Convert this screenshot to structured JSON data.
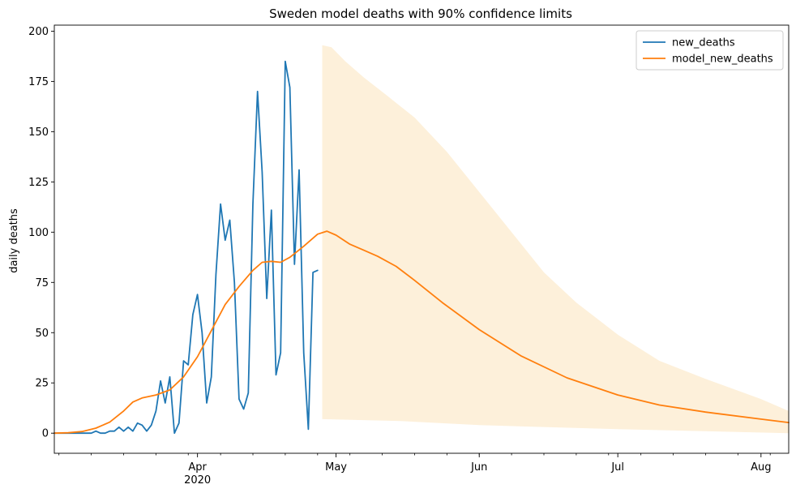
{
  "chart_data": {
    "type": "line",
    "title": "Sweden model deaths with 90% confidence limits",
    "xlabel": "",
    "ylabel": "daily deaths",
    "ylim": [
      -10,
      203
    ],
    "xlim": [
      "2020-03-01",
      "2020-08-07"
    ],
    "yticks": [
      0,
      25,
      50,
      75,
      100,
      125,
      150,
      175,
      200
    ],
    "xticks": [
      {
        "date": "2020-04-01",
        "label": "Apr",
        "sublabel": "2020"
      },
      {
        "date": "2020-05-01",
        "label": "May",
        "sublabel": ""
      },
      {
        "date": "2020-06-01",
        "label": "Jun",
        "sublabel": ""
      },
      {
        "date": "2020-07-01",
        "label": "Jul",
        "sublabel": ""
      },
      {
        "date": "2020-08-01",
        "label": "Aug",
        "sublabel": ""
      }
    ],
    "legend_position": "top-right",
    "grid": false,
    "colors": {
      "new_deaths": "#1f77b4",
      "model_new_deaths": "#ff7f0e",
      "confidence_band": "#fdf0da"
    },
    "series": [
      {
        "name": "new_deaths",
        "points": [
          [
            "2020-03-01",
            0
          ],
          [
            "2020-03-02",
            0
          ],
          [
            "2020-03-03",
            0
          ],
          [
            "2020-03-04",
            0
          ],
          [
            "2020-03-05",
            0
          ],
          [
            "2020-03-06",
            0
          ],
          [
            "2020-03-07",
            0
          ],
          [
            "2020-03-08",
            0
          ],
          [
            "2020-03-09",
            0
          ],
          [
            "2020-03-10",
            1
          ],
          [
            "2020-03-11",
            0
          ],
          [
            "2020-03-12",
            0
          ],
          [
            "2020-03-13",
            1
          ],
          [
            "2020-03-14",
            1
          ],
          [
            "2020-03-15",
            3
          ],
          [
            "2020-03-16",
            1
          ],
          [
            "2020-03-17",
            3
          ],
          [
            "2020-03-18",
            1
          ],
          [
            "2020-03-19",
            5
          ],
          [
            "2020-03-20",
            4
          ],
          [
            "2020-03-21",
            1
          ],
          [
            "2020-03-22",
            4
          ],
          [
            "2020-03-23",
            11
          ],
          [
            "2020-03-24",
            26
          ],
          [
            "2020-03-25",
            15
          ],
          [
            "2020-03-26",
            28
          ],
          [
            "2020-03-27",
            0
          ],
          [
            "2020-03-28",
            5
          ],
          [
            "2020-03-29",
            36
          ],
          [
            "2020-03-30",
            34
          ],
          [
            "2020-03-31",
            59
          ],
          [
            "2020-04-01",
            69
          ],
          [
            "2020-04-02",
            50
          ],
          [
            "2020-04-03",
            15
          ],
          [
            "2020-04-04",
            28
          ],
          [
            "2020-04-05",
            79
          ],
          [
            "2020-04-06",
            114
          ],
          [
            "2020-04-07",
            96
          ],
          [
            "2020-04-08",
            106
          ],
          [
            "2020-04-09",
            75
          ],
          [
            "2020-04-10",
            17
          ],
          [
            "2020-04-11",
            12
          ],
          [
            "2020-04-12",
            20
          ],
          [
            "2020-04-13",
            114
          ],
          [
            "2020-04-14",
            170
          ],
          [
            "2020-04-15",
            130
          ],
          [
            "2020-04-16",
            67
          ],
          [
            "2020-04-17",
            111
          ],
          [
            "2020-04-18",
            29
          ],
          [
            "2020-04-19",
            40
          ],
          [
            "2020-04-20",
            185
          ],
          [
            "2020-04-21",
            172
          ],
          [
            "2020-04-22",
            84
          ],
          [
            "2020-04-23",
            131
          ],
          [
            "2020-04-24",
            40
          ],
          [
            "2020-04-25",
            2
          ],
          [
            "2020-04-26",
            80
          ],
          [
            "2020-04-27",
            81
          ]
        ]
      },
      {
        "name": "model_new_deaths",
        "points": [
          [
            "2020-03-01",
            0
          ],
          [
            "2020-03-04",
            0.2
          ],
          [
            "2020-03-07",
            0.8
          ],
          [
            "2020-03-10",
            2.5
          ],
          [
            "2020-03-13",
            5.5
          ],
          [
            "2020-03-16",
            11
          ],
          [
            "2020-03-18",
            15.5
          ],
          [
            "2020-03-20",
            17.5
          ],
          [
            "2020-03-23",
            19
          ],
          [
            "2020-03-26",
            21.5
          ],
          [
            "2020-03-29",
            28
          ],
          [
            "2020-04-01",
            38
          ],
          [
            "2020-04-04",
            51
          ],
          [
            "2020-04-07",
            64
          ],
          [
            "2020-04-10",
            73
          ],
          [
            "2020-04-13",
            81
          ],
          [
            "2020-04-15",
            85
          ],
          [
            "2020-04-17",
            85.5
          ],
          [
            "2020-04-19",
            85
          ],
          [
            "2020-04-21",
            87.5
          ],
          [
            "2020-04-24",
            93
          ],
          [
            "2020-04-27",
            99
          ],
          [
            "2020-04-29",
            100.5
          ],
          [
            "2020-05-01",
            98.5
          ],
          [
            "2020-05-04",
            94
          ],
          [
            "2020-05-07",
            91
          ],
          [
            "2020-05-10",
            88
          ],
          [
            "2020-05-14",
            83
          ],
          [
            "2020-05-18",
            76
          ],
          [
            "2020-05-24",
            65
          ],
          [
            "2020-06-01",
            51.5
          ],
          [
            "2020-06-10",
            38.5
          ],
          [
            "2020-06-20",
            27.5
          ],
          [
            "2020-07-01",
            19
          ],
          [
            "2020-07-10",
            14
          ],
          [
            "2020-07-20",
            10.5
          ],
          [
            "2020-08-01",
            7
          ],
          [
            "2020-08-07",
            5.3
          ]
        ]
      }
    ],
    "band": {
      "upper": [
        [
          "2020-04-28",
          193
        ],
        [
          "2020-04-30",
          192
        ],
        [
          "2020-05-03",
          185
        ],
        [
          "2020-05-07",
          177
        ],
        [
          "2020-05-12",
          168
        ],
        [
          "2020-05-18",
          157
        ],
        [
          "2020-05-25",
          140
        ],
        [
          "2020-06-01",
          120
        ],
        [
          "2020-06-08",
          100
        ],
        [
          "2020-06-15",
          80
        ],
        [
          "2020-06-22",
          65
        ],
        [
          "2020-07-01",
          49
        ],
        [
          "2020-07-10",
          36
        ],
        [
          "2020-07-20",
          27
        ],
        [
          "2020-08-01",
          17
        ],
        [
          "2020-08-07",
          11
        ]
      ],
      "lower": [
        [
          "2020-04-28",
          7
        ],
        [
          "2020-05-15",
          6
        ],
        [
          "2020-06-01",
          4
        ],
        [
          "2020-07-01",
          2
        ],
        [
          "2020-08-07",
          0
        ]
      ]
    }
  }
}
